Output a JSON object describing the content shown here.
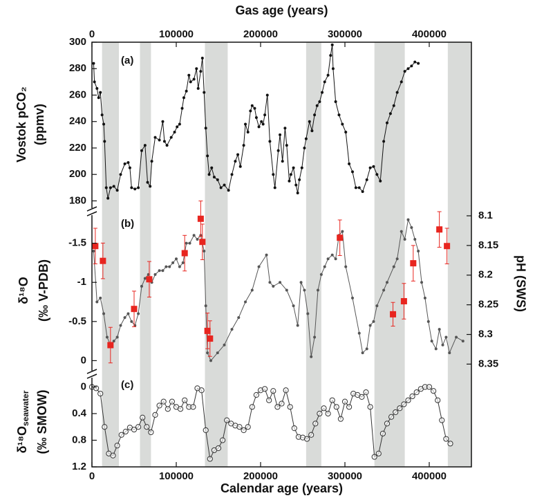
{
  "chart_data": [
    {
      "type": "line",
      "panel_label": "(a)",
      "xlabel": "Gas age (years)",
      "xaxis_position": "top",
      "ylabel": "Vostok pCO₂",
      "ylabel_units": "(ppmv)",
      "xlim": [
        0,
        450000
      ],
      "xticks": [
        0,
        100000,
        200000,
        300000,
        400000
      ],
      "ylim": [
        175,
        300
      ],
      "yticks": [
        180,
        200,
        220,
        240,
        260,
        280,
        300
      ],
      "shaded_x": [
        [
          12000,
          32000
        ],
        [
          57000,
          70000
        ],
        [
          134000,
          161000
        ],
        [
          254000,
          272000
        ],
        [
          335000,
          371000
        ],
        [
          422000,
          450000
        ]
      ],
      "shade_color": "#d9dbd9",
      "color": "#111111",
      "marker": "dot",
      "x": [
        2000,
        3000,
        6000,
        8000,
        10000,
        12000,
        14000,
        15000,
        17000,
        19000,
        22000,
        26000,
        30000,
        34000,
        39000,
        43000,
        45000,
        47000,
        51000,
        55000,
        59000,
        63000,
        66000,
        69000,
        71000,
        75000,
        80000,
        84000,
        86000,
        89000,
        94000,
        98000,
        101000,
        104000,
        107000,
        109000,
        112000,
        115000,
        117000,
        121000,
        124000,
        126000,
        129000,
        131000,
        133000,
        135000,
        137000,
        139000,
        142000,
        145000,
        149000,
        153000,
        157000,
        162000,
        166000,
        170000,
        173000,
        176000,
        180000,
        182000,
        185000,
        188000,
        190000,
        193000,
        195000,
        198000,
        201000,
        203000,
        205000,
        208000,
        211000,
        215000,
        217000,
        221000,
        223000,
        226000,
        229000,
        231000,
        234000,
        236000,
        239000,
        242000,
        244000,
        246000,
        249000,
        252000,
        254000,
        258000,
        261000,
        264000,
        267000,
        270000,
        273000,
        276000,
        280000,
        283000,
        285000,
        286000,
        289000,
        293000,
        297000,
        301000,
        305000,
        309000,
        313000,
        317000,
        321000,
        326000,
        330000,
        334000,
        338000,
        342000,
        346000,
        350000,
        354000,
        358000,
        362000,
        367000,
        371000,
        375000,
        379000,
        383000,
        387000
      ],
      "values": [
        284,
        270,
        265,
        258,
        262,
        245,
        238,
        225,
        190,
        182,
        190,
        191,
        188,
        200,
        208,
        209,
        205,
        190,
        189,
        190,
        218,
        222,
        194,
        191,
        210,
        228,
        226,
        240,
        225,
        222,
        228,
        232,
        236,
        238,
        250,
        258,
        263,
        275,
        270,
        272,
        280,
        265,
        278,
        288,
        262,
        235,
        214,
        200,
        205,
        198,
        196,
        190,
        192,
        188,
        200,
        210,
        215,
        206,
        222,
        238,
        232,
        248,
        252,
        250,
        243,
        236,
        240,
        238,
        245,
        260,
        225,
        200,
        190,
        218,
        230,
        210,
        235,
        222,
        195,
        200,
        205,
        192,
        186,
        196,
        205,
        220,
        227,
        240,
        233,
        245,
        252,
        255,
        262,
        270,
        275,
        290,
        298,
        280,
        255,
        245,
        238,
        232,
        208,
        202,
        190,
        190,
        187,
        196,
        205,
        206,
        200,
        195,
        225,
        239,
        246,
        252,
        262,
        270,
        278,
        280,
        282,
        285,
        284
      ]
    },
    {
      "type": "line",
      "panel_label": "(b)",
      "ylabel": "δ¹⁸O",
      "ylabel_units": "(‰ V-PDB)",
      "y2label": "pH (SWS)",
      "xlim": [
        0,
        450000
      ],
      "ylim": [
        0.12,
        -1.85
      ],
      "yticks": [
        -1.5,
        -1,
        -0.5,
        0
      ],
      "y2lim": [
        8.36,
        8.1
      ],
      "y2ticks": [
        8.1,
        8.15,
        8.2,
        8.25,
        8.3,
        8.35
      ],
      "series": [
        {
          "color": "#555555",
          "marker": "dot",
          "x": [
            2000,
            6000,
            10000,
            14000,
            18000,
            22000,
            26000,
            30000,
            34000,
            39000,
            43000,
            47000,
            51000,
            55000,
            59000,
            63000,
            67000,
            71000,
            75000,
            80000,
            84000,
            88000,
            92000,
            96000,
            100000,
            104000,
            108000,
            112000,
            116000,
            121000,
            125000,
            129000,
            133000,
            135000,
            137000,
            141000,
            149000,
            157000,
            166000,
            174000,
            182000,
            190000,
            198000,
            207000,
            211000,
            215000,
            223000,
            231000,
            239000,
            244000,
            248000,
            252000,
            256000,
            260000,
            264000,
            268000,
            272000,
            276000,
            280000,
            285000,
            289000,
            293000,
            297000,
            301000,
            309000,
            317000,
            321000,
            326000,
            330000,
            334000,
            338000,
            346000,
            350000,
            358000,
            362000,
            367000,
            371000,
            375000,
            379000,
            383000,
            387000,
            391000,
            395000,
            399000,
            403000,
            408000,
            412000,
            416000,
            420000,
            424000,
            432000,
            440000
          ],
          "values": [
            -1.4,
            -0.75,
            -0.8,
            -0.6,
            -0.3,
            -0.2,
            -0.25,
            -0.3,
            -0.45,
            -0.55,
            -0.6,
            -0.5,
            -0.45,
            -0.6,
            -0.95,
            -1.05,
            -1.1,
            -1.0,
            -1.1,
            -1.15,
            -1.15,
            -1.2,
            -1.2,
            -1.25,
            -1.3,
            -1.2,
            -1.25,
            -1.5,
            -1.5,
            -1.6,
            -1.55,
            -1.6,
            -1.4,
            -0.7,
            -0.1,
            0,
            -0.1,
            -0.2,
            -0.4,
            -0.55,
            -0.75,
            -0.9,
            -1.2,
            -1.35,
            -1.0,
            -0.95,
            -1.0,
            -0.9,
            -0.7,
            -0.45,
            -1.0,
            -0.9,
            -0.6,
            -0.05,
            -0.3,
            -0.9,
            -1.1,
            -1.2,
            -1.3,
            -1.35,
            -1.3,
            -1.6,
            -1.65,
            -1.2,
            -0.8,
            -0.35,
            -0.1,
            -0.15,
            -0.45,
            -0.5,
            -0.7,
            -0.9,
            -1.0,
            -1.2,
            -1.3,
            -1.65,
            -1.55,
            -1.8,
            -1.7,
            -1.55,
            -1.4,
            -1.0,
            -0.8,
            -0.5,
            -0.25,
            -0.15,
            -0.4,
            -0.2,
            -0.3,
            -0.1,
            -0.3,
            -0.25
          ]
        },
        {
          "color": "#e8251f",
          "marker": "square",
          "linestyle": "none",
          "axis": "y2",
          "x": [
            4000,
            13000,
            22000,
            50000,
            68000,
            110000,
            129000,
            131000,
            137000,
            140000,
            294000,
            357000,
            370000,
            381000,
            412000,
            421000
          ],
          "values": [
            8.151,
            8.176,
            8.318,
            8.257,
            8.207,
            8.163,
            8.105,
            8.144,
            8.294,
            8.307,
            8.137,
            8.266,
            8.244,
            8.18,
            8.123,
            8.151
          ],
          "errors": [
            0.03,
            0.03,
            0.03,
            0.03,
            0.03,
            0.03,
            0.03,
            0.03,
            0.03,
            0.03,
            0.03,
            0.02,
            0.03,
            0.03,
            0.03,
            0.03
          ]
        }
      ]
    },
    {
      "type": "line",
      "panel_label": "(c)",
      "xlabel": "Calendar age (years)",
      "xaxis_position": "bottom",
      "ylabel": "δ¹⁸O",
      "ylabel_sub": "seawater",
      "ylabel_units": "(‰ SMOW)",
      "xlim": [
        0,
        450000
      ],
      "xticks": [
        0,
        100000,
        200000,
        300000,
        400000
      ],
      "ylim": [
        1.2,
        -0.15
      ],
      "yticks": [
        0,
        0.4,
        0.8,
        1.2
      ],
      "color": "#333333",
      "marker": "circle",
      "x": [
        0,
        5000,
        10000,
        15000,
        20000,
        25000,
        30000,
        35000,
        40000,
        45000,
        50000,
        55000,
        60000,
        65000,
        70000,
        75000,
        80000,
        85000,
        90000,
        95000,
        100000,
        105000,
        110000,
        115000,
        120000,
        125000,
        130000,
        135000,
        140000,
        145000,
        150000,
        155000,
        160000,
        165000,
        170000,
        175000,
        180000,
        185000,
        190000,
        195000,
        200000,
        205000,
        210000,
        215000,
        220000,
        225000,
        230000,
        235000,
        240000,
        245000,
        250000,
        255000,
        260000,
        265000,
        270000,
        275000,
        280000,
        285000,
        290000,
        295000,
        300000,
        305000,
        310000,
        315000,
        320000,
        325000,
        330000,
        335000,
        340000,
        345000,
        350000,
        355000,
        360000,
        365000,
        370000,
        375000,
        380000,
        385000,
        390000,
        395000,
        400000,
        405000,
        410000,
        415000,
        420000,
        425000
      ],
      "values": [
        0,
        0.02,
        0.1,
        0.6,
        1.0,
        1.03,
        0.88,
        0.72,
        0.67,
        0.61,
        0.64,
        0.6,
        0.46,
        0.6,
        0.68,
        0.42,
        0.28,
        0.22,
        0.33,
        0.22,
        0.3,
        0.33,
        0.2,
        0.3,
        0.3,
        0.02,
        0.05,
        0.65,
        1.08,
        0.95,
        0.92,
        0.8,
        0.5,
        0.55,
        0.58,
        0.6,
        0.65,
        0.6,
        0.3,
        0.12,
        0.05,
        0.03,
        0.2,
        0.06,
        0.3,
        0.25,
        0.05,
        0.3,
        0.62,
        0.75,
        0.76,
        0.78,
        0.72,
        0.55,
        0.4,
        0.32,
        0.4,
        0.2,
        0.3,
        0.48,
        0.22,
        0.3,
        0.1,
        0.12,
        0.15,
        0.08,
        0.3,
        1.05,
        1.0,
        0.7,
        0.55,
        0.45,
        0.38,
        0.32,
        0.26,
        0.2,
        0.14,
        0.08,
        0.03,
        0,
        0,
        0.06,
        0.2,
        0.5,
        0.78,
        0.85
      ]
    }
  ]
}
